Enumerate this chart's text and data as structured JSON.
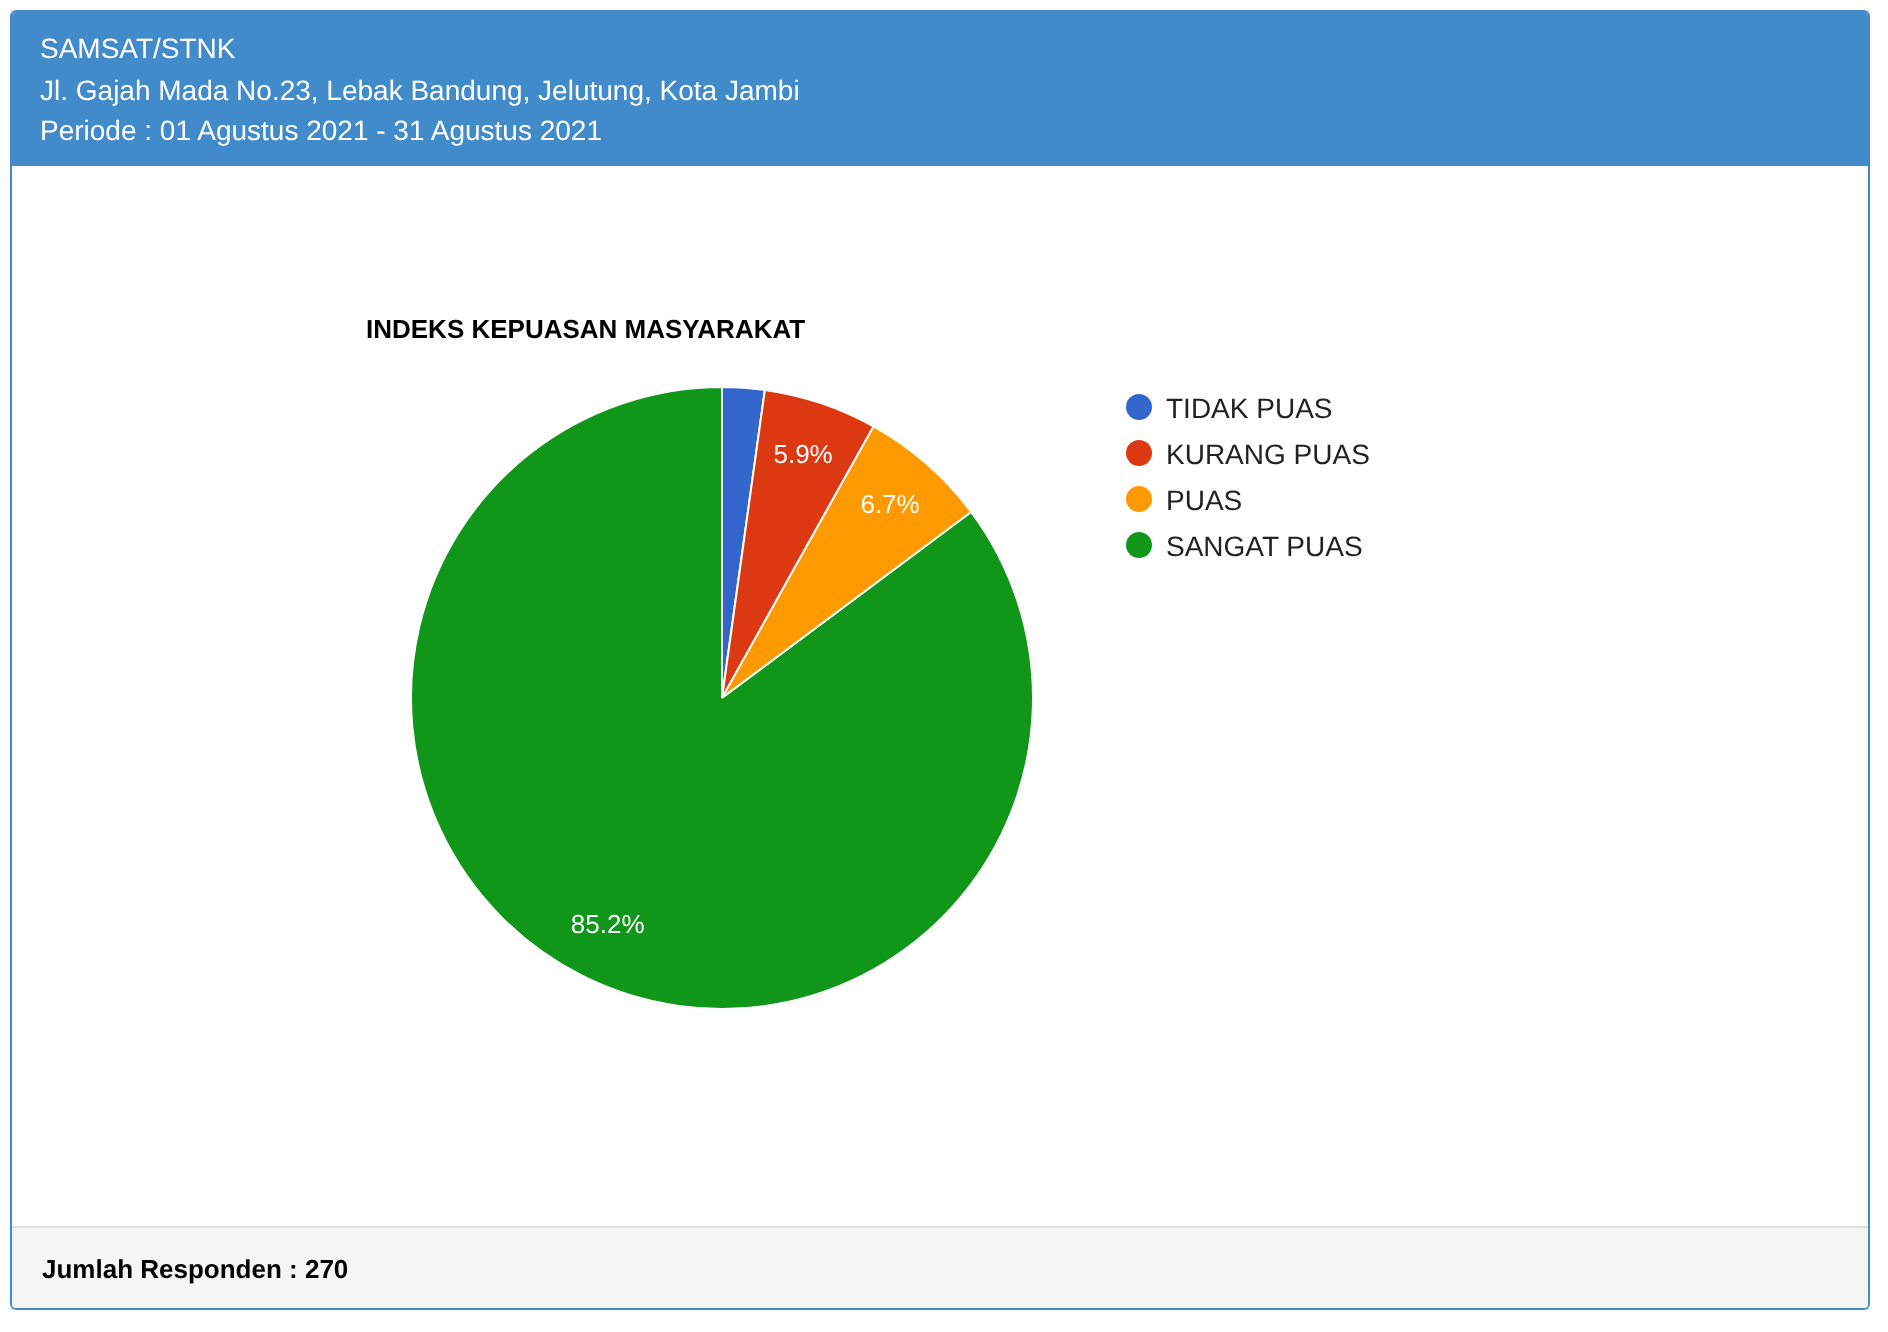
{
  "chart_data": {
    "type": "pie",
    "title": "INDEKS KEPUASAN MASYARAKAT",
    "categories": [
      "TIDAK PUAS",
      "KURANG PUAS",
      "PUAS",
      "SANGAT PUAS"
    ],
    "values": [
      2.2,
      5.9,
      6.7,
      85.2
    ],
    "colors": [
      "#3366cc",
      "#dc3912",
      "#ff9900",
      "#109618"
    ],
    "value_labels": [
      null,
      "5.9%",
      "6.7%",
      "85.2%"
    ],
    "legend": "right",
    "annotations": [
      "SAMSAT/STNK",
      "Jl. Gajah Mada No.23, Lebak Bandung, Jelutung, Kota Jambi",
      "Periode : 01 Agustus 2021 - 31 Agustus 2021",
      "Jumlah Responden : 270"
    ]
  }
}
